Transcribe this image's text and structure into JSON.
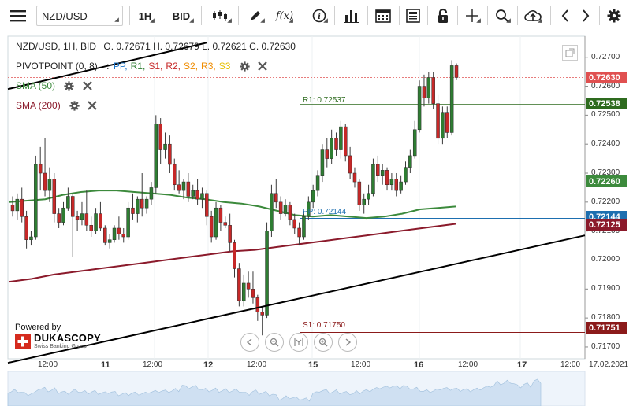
{
  "toolbar": {
    "menu_icon": "hamburger-icon",
    "symbol": "NZD/USD",
    "timeframe": "1H",
    "price_side": "BID",
    "chart_type_icon": "candles-icon",
    "draw_icon": "pencil-icon",
    "indicators_label": "f(x)",
    "info_icon": "info-icon",
    "bars_icon": "bar-chart-icon",
    "calendar_icon": "calendar-icon",
    "news_icon": "news-icon",
    "lock_icon": "lock-icon",
    "crosshair_icon": "crosshair-icon",
    "zoom_icon": "zoom-icon",
    "upload_icon": "cloud-upload-icon",
    "prev_icon": "chevron-left-icon",
    "next_icon": "chevron-right-icon",
    "settings_icon": "gear-icon"
  },
  "legend": {
    "instrument": "NZD/USD, 1H, BID",
    "ohlc": "O. 0.72671 H. 0.72679 L. 0.72621 C. 0.72630",
    "pivot_title": "PIVOTPOINT (0, 8)",
    "pivot_sep": ":",
    "pivot_items": [
      {
        "label": "PP,",
        "color": "#1a73c8"
      },
      {
        "label": "R1,",
        "color": "#2e7d32"
      },
      {
        "label": "S1,",
        "color": "#c62828"
      },
      {
        "label": "R2,",
        "color": "#c62828"
      },
      {
        "label": "S2,",
        "color": "#ef8c00"
      },
      {
        "label": "R3,",
        "color": "#ef8c00"
      },
      {
        "label": "S3",
        "color": "#e6c000"
      }
    ],
    "sma50": "SMA (50)",
    "sma200": "SMA (200)"
  },
  "price_axis": {
    "ticks": [
      "0.72700",
      "0.72600",
      "0.72500",
      "0.72400",
      "0.72300",
      "0.72200",
      "0.72100",
      "0.72000",
      "0.71900",
      "0.71800",
      "0.71700"
    ],
    "tags": [
      {
        "label": "0.72630",
        "color": "#e05050"
      },
      {
        "label": "0.72538",
        "color": "#2e6b1f"
      },
      {
        "label": "0.72260",
        "color": "#3c8a3c"
      },
      {
        "label": "0.72144",
        "color": "#1d6fb0"
      },
      {
        "label": "0.72125",
        "color": "#8b1a2b"
      },
      {
        "label": "0.71751",
        "color": "#8b1a1a"
      }
    ]
  },
  "levels": {
    "r1_label": "R1: 0.72537",
    "pp_label": "PP: 0.72144",
    "s1_label": "S1: 0.71750"
  },
  "time_axis": {
    "labels": [
      "12:00",
      "11",
      "12:00",
      "12",
      "12:00",
      "15",
      "12:00",
      "16",
      "12:00",
      "17",
      "12:00",
      "17.02.2021"
    ]
  },
  "branding": {
    "powered_by": "Powered by",
    "name": "DUKASCOPY",
    "tagline": "Swiss Banking Group"
  },
  "colors": {
    "sma50": "#3c8a3c",
    "sma200": "#8b1a2b",
    "candle": "#2e7d32",
    "candle_down": "#c62828"
  },
  "chart_data": {
    "type": "candlestick",
    "symbol": "NZD/USD",
    "timeframe": "1H",
    "ylim": [
      0.7167,
      0.7274
    ],
    "candles": [
      [
        0.7219,
        0.7222,
        0.7215,
        0.7217
      ],
      [
        0.7217,
        0.7223,
        0.7214,
        0.7221
      ],
      [
        0.7221,
        0.7225,
        0.7213,
        0.7215
      ],
      [
        0.7215,
        0.7217,
        0.7204,
        0.7207
      ],
      [
        0.7207,
        0.721,
        0.7205,
        0.7208
      ],
      [
        0.7208,
        0.7236,
        0.7207,
        0.7233
      ],
      [
        0.7233,
        0.7239,
        0.7224,
        0.723
      ],
      [
        0.723,
        0.7242,
        0.7222,
        0.7224
      ],
      [
        0.7224,
        0.7232,
        0.722,
        0.7228
      ],
      [
        0.7228,
        0.723,
        0.7213,
        0.7216
      ],
      [
        0.7216,
        0.7218,
        0.7211,
        0.7213
      ],
      [
        0.7213,
        0.722,
        0.7212,
        0.7218
      ],
      [
        0.7218,
        0.7225,
        0.7217,
        0.7222
      ],
      [
        0.7222,
        0.7223,
        0.7201,
        0.7215
      ],
      [
        0.7215,
        0.7217,
        0.721,
        0.7214
      ],
      [
        0.7214,
        0.722,
        0.7212,
        0.7216
      ],
      [
        0.7216,
        0.7224,
        0.721,
        0.7212
      ],
      [
        0.7212,
        0.7215,
        0.7208,
        0.721
      ],
      [
        0.721,
        0.7218,
        0.7209,
        0.7216
      ],
      [
        0.7216,
        0.722,
        0.721,
        0.7211
      ],
      [
        0.7211,
        0.7212,
        0.7205,
        0.7206
      ],
      [
        0.7206,
        0.7209,
        0.7204,
        0.7207
      ],
      [
        0.7207,
        0.7212,
        0.7206,
        0.7211
      ],
      [
        0.7211,
        0.7215,
        0.7207,
        0.7209
      ],
      [
        0.7209,
        0.7211,
        0.7206,
        0.7208
      ],
      [
        0.7208,
        0.722,
        0.7207,
        0.7218
      ],
      [
        0.7218,
        0.7223,
        0.7214,
        0.7216
      ],
      [
        0.7216,
        0.7222,
        0.7213,
        0.7221
      ],
      [
        0.7221,
        0.723,
        0.7215,
        0.7218
      ],
      [
        0.7218,
        0.7222,
        0.7216,
        0.7221
      ],
      [
        0.7221,
        0.7227,
        0.7219,
        0.7225
      ],
      [
        0.7225,
        0.725,
        0.7223,
        0.7247
      ],
      [
        0.7247,
        0.7249,
        0.7233,
        0.7238
      ],
      [
        0.7238,
        0.7244,
        0.7235,
        0.724
      ],
      [
        0.724,
        0.7243,
        0.723,
        0.7233
      ],
      [
        0.7233,
        0.7235,
        0.7224,
        0.7226
      ],
      [
        0.7226,
        0.7231,
        0.7223,
        0.7224
      ],
      [
        0.7224,
        0.7228,
        0.7221,
        0.7227
      ],
      [
        0.7227,
        0.723,
        0.722,
        0.7222
      ],
      [
        0.7222,
        0.7226,
        0.7221,
        0.7224
      ],
      [
        0.7224,
        0.7228,
        0.7219,
        0.7221
      ],
      [
        0.7221,
        0.7225,
        0.7218,
        0.7223
      ],
      [
        0.7223,
        0.7224,
        0.7212,
        0.7215
      ],
      [
        0.7215,
        0.7217,
        0.7206,
        0.7208
      ],
      [
        0.7208,
        0.722,
        0.7207,
        0.7218
      ],
      [
        0.7218,
        0.7219,
        0.721,
        0.7213
      ],
      [
        0.7213,
        0.7215,
        0.7211,
        0.7212
      ],
      [
        0.7212,
        0.7216,
        0.7203,
        0.7206
      ],
      [
        0.7206,
        0.7207,
        0.7194,
        0.7197
      ],
      [
        0.7197,
        0.7199,
        0.7184,
        0.7186
      ],
      [
        0.7186,
        0.7195,
        0.7184,
        0.7192
      ],
      [
        0.7192,
        0.7196,
        0.7187,
        0.719
      ],
      [
        0.719,
        0.7196,
        0.7185,
        0.7187
      ],
      [
        0.7187,
        0.7188,
        0.7179,
        0.7182
      ],
      [
        0.7182,
        0.7184,
        0.7174,
        0.7181
      ],
      [
        0.7181,
        0.7213,
        0.718,
        0.721
      ],
      [
        0.721,
        0.7226,
        0.7208,
        0.7223
      ],
      [
        0.7223,
        0.7228,
        0.7218,
        0.722
      ],
      [
        0.722,
        0.7222,
        0.7214,
        0.7216
      ],
      [
        0.7216,
        0.7221,
        0.7215,
        0.7219
      ],
      [
        0.7219,
        0.722,
        0.7212,
        0.7214
      ],
      [
        0.7214,
        0.7216,
        0.7209,
        0.7211
      ],
      [
        0.7211,
        0.7213,
        0.7205,
        0.7208
      ],
      [
        0.7208,
        0.7217,
        0.7207,
        0.7215
      ],
      [
        0.7215,
        0.7222,
        0.7214,
        0.722
      ],
      [
        0.722,
        0.7226,
        0.7218,
        0.7224
      ],
      [
        0.7224,
        0.7231,
        0.7222,
        0.7229
      ],
      [
        0.7229,
        0.724,
        0.7227,
        0.7238
      ],
      [
        0.7238,
        0.7242,
        0.7232,
        0.7235
      ],
      [
        0.7235,
        0.7245,
        0.7233,
        0.7242
      ],
      [
        0.7242,
        0.7244,
        0.7236,
        0.7238
      ],
      [
        0.7238,
        0.7248,
        0.7235,
        0.7246
      ],
      [
        0.7246,
        0.7247,
        0.7234,
        0.7236
      ],
      [
        0.7236,
        0.7239,
        0.7228,
        0.723
      ],
      [
        0.723,
        0.7232,
        0.7225,
        0.7227
      ],
      [
        0.7227,
        0.7228,
        0.7217,
        0.7219
      ],
      [
        0.7219,
        0.7223,
        0.7216,
        0.7221
      ],
      [
        0.7221,
        0.7226,
        0.7219,
        0.7223
      ],
      [
        0.7223,
        0.7235,
        0.7222,
        0.7233
      ],
      [
        0.7233,
        0.7236,
        0.7227,
        0.7229
      ],
      [
        0.7229,
        0.7233,
        0.7226,
        0.7231
      ],
      [
        0.7231,
        0.7232,
        0.7224,
        0.7226
      ],
      [
        0.7226,
        0.723,
        0.7224,
        0.7228
      ],
      [
        0.7228,
        0.723,
        0.7222,
        0.7224
      ],
      [
        0.7224,
        0.7229,
        0.7223,
        0.7227
      ],
      [
        0.7227,
        0.7234,
        0.7226,
        0.7232
      ],
      [
        0.7232,
        0.7238,
        0.723,
        0.7236
      ],
      [
        0.7236,
        0.7248,
        0.7235,
        0.7245
      ],
      [
        0.7245,
        0.7262,
        0.7244,
        0.726
      ],
      [
        0.726,
        0.7264,
        0.7253,
        0.7256
      ],
      [
        0.7256,
        0.7265,
        0.7254,
        0.7263
      ],
      [
        0.7263,
        0.7265,
        0.7252,
        0.7254
      ],
      [
        0.7254,
        0.7257,
        0.724,
        0.7242
      ],
      [
        0.7242,
        0.7253,
        0.724,
        0.7251
      ],
      [
        0.7251,
        0.7253,
        0.7242,
        0.7244
      ],
      [
        0.7244,
        0.7269,
        0.7243,
        0.72671
      ],
      [
        0.72671,
        0.72679,
        0.72621,
        0.7263
      ]
    ],
    "sma50": [
      0.722,
      0.72205,
      0.7221,
      0.72225,
      0.72235,
      0.7224,
      0.7224,
      0.72235,
      0.7223,
      0.72225,
      0.72215,
      0.7221,
      0.722,
      0.72195,
      0.72185,
      0.7217,
      0.72155,
      0.7215,
      0.72155,
      0.7215,
      0.72145,
      0.7215,
      0.7216,
      0.72175,
      0.7218,
      0.72185
    ],
    "sma200": [
      0.71925,
      0.71935,
      0.7195,
      0.7196,
      0.7197,
      0.7198,
      0.7199,
      0.72,
      0.7201,
      0.7202,
      0.7203,
      0.72035,
      0.72045,
      0.72055,
      0.72065,
      0.72075,
      0.72085,
      0.72095,
      0.72105,
      0.72115,
      0.72125
    ],
    "r1": 0.72537,
    "pp": 0.72144,
    "s1": 0.7175,
    "last": 0.7263
  }
}
